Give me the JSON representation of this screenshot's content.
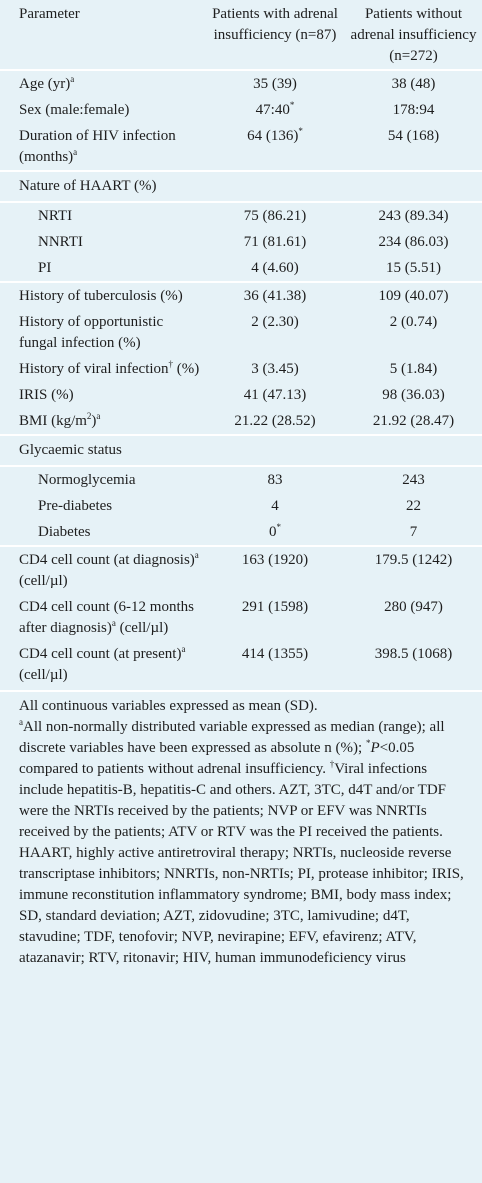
{
  "table": {
    "header": [
      "Parameter",
      "Patients with adrenal insufficiency (n=87)",
      "Patients without adrenal insufficiency (n=272)"
    ],
    "body": [
      {
        "cells": [
          [
            "Age (yr)",
            {
              "sup": "a"
            }
          ],
          [
            "35 (39)"
          ],
          [
            "38 (48)"
          ]
        ]
      },
      {
        "cells": [
          [
            "Sex (male:female)"
          ],
          [
            "47:40",
            {
              "sup": "*"
            }
          ],
          [
            "178:94"
          ]
        ]
      },
      {
        "cells": [
          [
            "Duration of HIV infection (months)",
            {
              "sup": "a"
            }
          ],
          [
            "64 (136)",
            {
              "sup": "*"
            }
          ],
          [
            "54 (168)"
          ]
        ]
      },
      {
        "heading": "Nature of HAART (%)",
        "items": [
          {
            "cells": [
              [
                "NRTI"
              ],
              [
                "75 (86.21)"
              ],
              [
                "243 (89.34)"
              ]
            ]
          },
          {
            "cells": [
              [
                "NNRTI"
              ],
              [
                "71 (81.61)"
              ],
              [
                "234 (86.03)"
              ]
            ]
          },
          {
            "cells": [
              [
                "PI"
              ],
              [
                "4 (4.60)"
              ],
              [
                "15 (5.51)"
              ]
            ]
          }
        ]
      },
      {
        "cells": [
          [
            "History of tuberculosis (%)"
          ],
          [
            "36 (41.38)"
          ],
          [
            "109 (40.07)"
          ]
        ]
      },
      {
        "cells": [
          [
            "History of opportunistic fungal infection (%)"
          ],
          [
            "2 (2.30)"
          ],
          [
            "2 (0.74)"
          ]
        ]
      },
      {
        "cells": [
          [
            "History of viral infection",
            {
              "sup": "†"
            },
            " (%)"
          ],
          [
            "3 (3.45)"
          ],
          [
            "5 (1.84)"
          ]
        ]
      },
      {
        "cells": [
          [
            "IRIS (%)"
          ],
          [
            "41 (47.13)"
          ],
          [
            "98 (36.03)"
          ]
        ]
      },
      {
        "cells": [
          [
            "BMI (kg/m",
            {
              "sup": "2"
            },
            ")",
            {
              "sup": "a"
            }
          ],
          [
            "21.22 (28.52)"
          ],
          [
            "21.92 (28.47)"
          ]
        ]
      },
      {
        "heading": "Glycaemic status",
        "items": [
          {
            "cells": [
              [
                "Normoglycemia"
              ],
              [
                "83"
              ],
              [
                "243"
              ]
            ]
          },
          {
            "cells": [
              [
                "Pre-diabetes"
              ],
              [
                "4"
              ],
              [
                "22"
              ]
            ]
          },
          {
            "cells": [
              [
                "Diabetes"
              ],
              [
                "0",
                {
                  "sup": "*"
                }
              ],
              [
                "7"
              ]
            ]
          }
        ]
      },
      {
        "cells": [
          [
            "CD4 cell count (at diagnosis)",
            {
              "sup": "a"
            },
            " (cell/µl)"
          ],
          [
            "163 (1920)"
          ],
          [
            "179.5 (1242)"
          ]
        ]
      },
      {
        "cells": [
          [
            "CD4 cell count (6-12 months after diagnosis)",
            {
              "sup": "a"
            },
            " (cell/µl)"
          ],
          [
            "291 (1598)"
          ],
          [
            "280 (947)"
          ]
        ]
      },
      {
        "cells": [
          [
            "CD4 cell count (at present)",
            {
              "sup": "a"
            },
            " (cell/µl)"
          ],
          [
            "414 (1355)"
          ],
          [
            "398.5 (1068)"
          ]
        ]
      }
    ]
  },
  "footnote": [
    [
      "All continuous variables expressed as mean (SD)."
    ],
    [
      {
        "sup": "a"
      },
      "All non-normally distributed variable expressed as median (range); all discrete variables have been expressed as absolute n (%); ",
      {
        "sup": "*"
      },
      {
        "i": "P"
      },
      "<0.05 compared to patients without adrenal insufficiency. ",
      {
        "sup": "†"
      },
      "Viral infections include hepatitis-B, hepatitis-C and others. AZT, 3TC, d4T and/or TDF were the NRTIs received by the patients; NVP or EFV was NNRTIs received by the patients; ATV or RTV was the PI received the patients. HAART, highly active antiretroviral therapy; NRTIs, nucleoside reverse transcriptase inhibitors; NNRTIs, non-NRTIs; PI, protease inhibitor; IRIS, immune reconstitution inflammatory syndrome; BMI, body mass index; SD, standard deviation; AZT, zidovudine; 3TC, lamivudine; d4T, stavudine; TDF, tenofovir; NVP, nevirapine; EFV, efavirenz; ATV, atazanavir; RTV, ritonavir; HIV, human immunodeficiency virus"
    ]
  ]
}
